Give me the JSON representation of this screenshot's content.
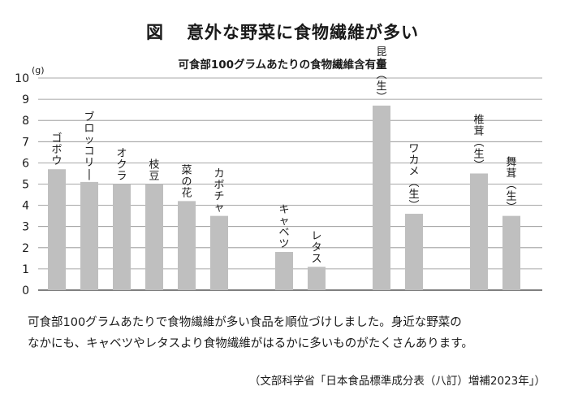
{
  "figure_label": "図",
  "title": "意外な野菜に食物繊維が多い",
  "subtitle": "可食部100グラムあたりの食物繊維含有量",
  "description": [
    "可食部100グラムあたりで食物繊維が多い食品を順位づけしました。身近な野菜の",
    "なかにも、キャベツやレタスより食物繊維がはるかに多いものがたくさんあります。"
  ],
  "source": "（文部科学省「日本食品標準成分表（八訂）増補2023年」）",
  "colors": {
    "bar": "#bfbfbf",
    "grid": "#8c8c8c",
    "text": "#1a1a1a"
  },
  "chart_data": {
    "type": "bar",
    "unit": "(g)",
    "ylim": [
      0,
      10
    ],
    "yticks": [
      0,
      1,
      2,
      3,
      4,
      5,
      6,
      7,
      8,
      9,
      10
    ],
    "grid": true,
    "categories": [
      "ゴボウ",
      "ブロッコリー",
      "オクラ",
      "枝豆",
      "菜の花",
      "カボチャ",
      "キャベツ",
      "レタス",
      "昆布（生）",
      "ワカメ（生）",
      "椎茸（生）",
      "舞茸（生）"
    ],
    "values": [
      5.7,
      5.1,
      5.0,
      5.0,
      4.2,
      3.5,
      1.8,
      1.1,
      8.7,
      3.6,
      5.5,
      3.5
    ]
  }
}
